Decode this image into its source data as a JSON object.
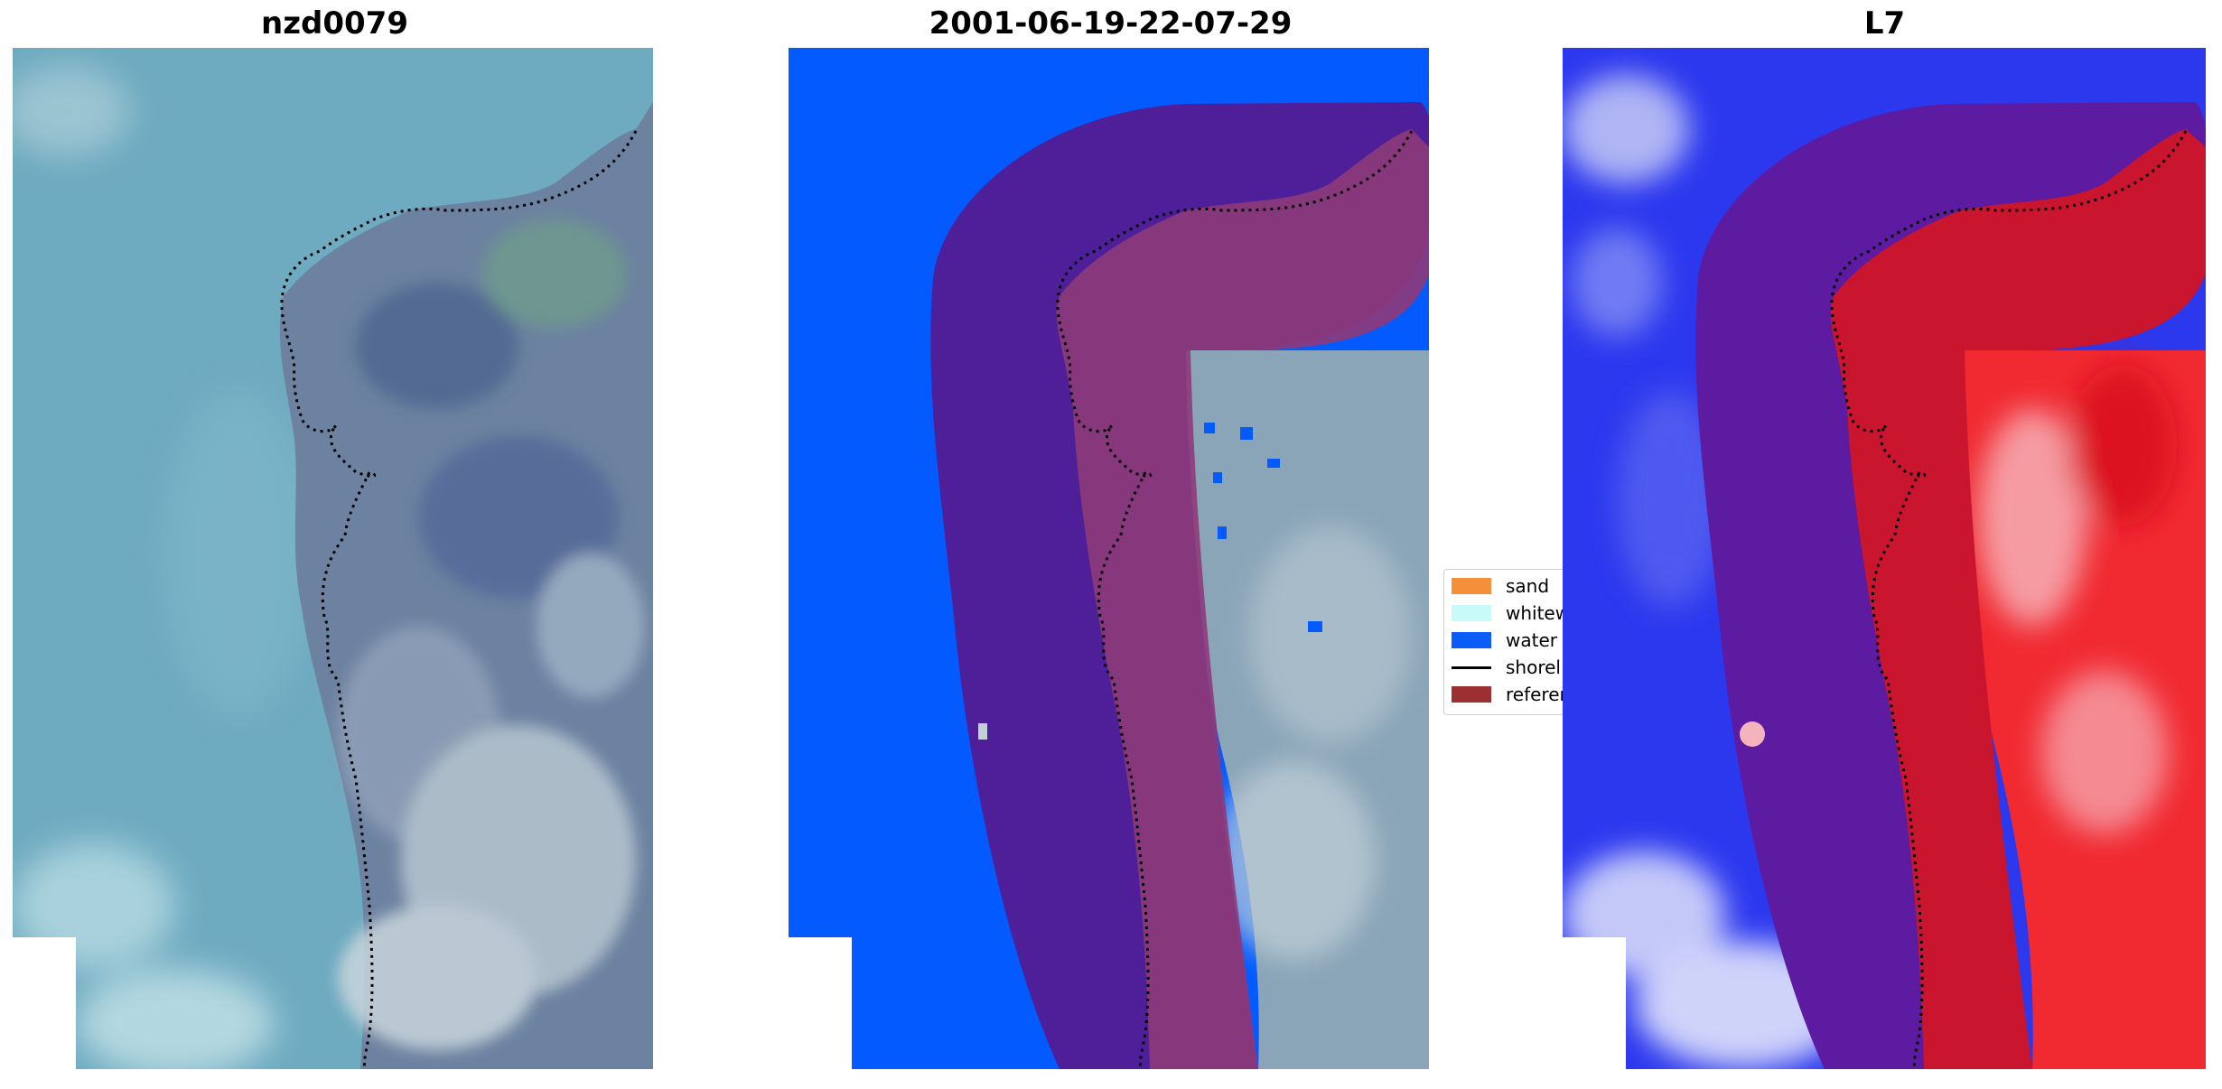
{
  "panels": {
    "left": {
      "title": "nzd0079"
    },
    "middle": {
      "title": "2001-06-19-22-07-29"
    },
    "right": {
      "title": "L7"
    }
  },
  "legend": {
    "items": [
      {
        "label": "sand",
        "color": "#f4903a",
        "icon": "swatch"
      },
      {
        "label": "whitew",
        "color": "#c8fbf8",
        "icon": "swatch"
      },
      {
        "label": "water",
        "color": "#0b5df8",
        "icon": "swatch"
      },
      {
        "label": "shorel",
        "color": "#000000",
        "icon": "line"
      },
      {
        "label": "referen",
        "color": "#9b2f31",
        "icon": "swatch"
      }
    ]
  },
  "colors": {
    "water_class": "#035bff",
    "reference_band": "#4e1f99",
    "rgb_sea": "#6fa9bf",
    "rgb_land": "#6f86a3",
    "index_blue": "#2432f0",
    "index_red": "#f32a37"
  }
}
